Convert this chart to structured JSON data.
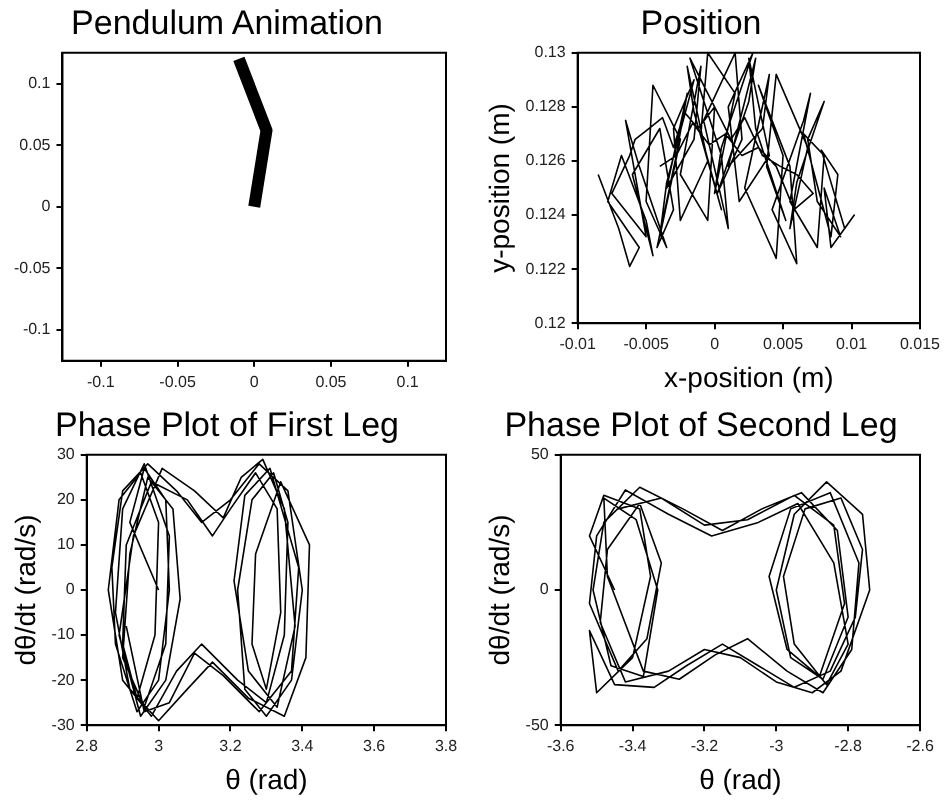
{
  "chart_data": [
    {
      "type": "line",
      "title": "Pendulum Animation",
      "xlim": [
        -0.125,
        0.125
      ],
      "ylim": [
        -0.125,
        0.125
      ],
      "xticks": [
        -0.1,
        -0.05,
        0,
        0.05,
        0.1
      ],
      "yticks": [
        -0.1,
        -0.05,
        0,
        0.05,
        0.1
      ],
      "grid": false,
      "series": [
        {
          "color": "#000000",
          "x": [
            -0.01,
            0.008,
            0
          ],
          "values": [
            0.12,
            0.062,
            0
          ]
        }
      ]
    },
    {
      "type": "line",
      "title": "Position",
      "xlabel": "x-position (m)",
      "ylabel": "y-position (m)",
      "xlim": [
        -0.01,
        0.015
      ],
      "ylim": [
        0.12,
        0.13
      ],
      "xticks": [
        -0.01,
        -0.005,
        0,
        0.005,
        0.01,
        0.015
      ],
      "yticks": [
        0.12,
        0.122,
        0.124,
        0.126,
        0.128,
        0.13
      ],
      "grid": false,
      "series": [
        {
          "color": "#000000",
          "x": [
            -0.0085,
            -0.007,
            -0.0062,
            -0.0055,
            -0.0078,
            -0.0068,
            -0.005,
            -0.0045,
            -0.006,
            -0.004,
            -0.003,
            -0.0042,
            -0.0028,
            -0.002,
            -0.0035,
            -0.0015,
            -0.001,
            -0.0025,
            -0.0005,
            0,
            -0.0018,
            0.0005,
            0.001,
            -0.0008,
            0.0015,
            0.002,
            0.0002,
            0.0025,
            0.003,
            0.001,
            0.0035,
            0.004,
            0.0022,
            0.0045,
            0.005,
            0.0032,
            0.0055,
            0.006,
            0.0042,
            0.0065,
            0.007,
            0.0055,
            0.0075,
            0.008,
            0.0065,
            0.0085,
            0.009,
            0.0078,
            0.0095,
            0.0102,
            0.0085,
            0.008,
            0.0092,
            0.0075,
            0.0068,
            0.008,
            0.006,
            0.0055,
            0.0068,
            0.0045,
            0.0038,
            0.0052,
            0.003,
            0.0025,
            0.004,
            0.0018,
            0.001,
            0.0028,
            0.0005,
            0,
            0.0015,
            -0.0005,
            -0.001,
            0.0005,
            -0.0015,
            -0.002,
            -0.0005,
            -0.0025,
            -0.003,
            -0.0015,
            -0.0035,
            -0.004,
            -0.0025,
            -0.0045,
            -0.005,
            -0.0035,
            -0.0055,
            -0.0065,
            -0.005,
            -0.0075,
            -0.0062,
            -0.0058,
            -0.0048,
            -0.0038,
            -0.003,
            -0.0022,
            -0.0012,
            0,
            0.0012,
            0.0022,
            0.0035,
            0.0048,
            0.006,
            0.0072,
            0.0058,
            0.0045,
            0.0032,
            0.002,
            0.0008,
            -0.0004,
            -0.0016,
            -0.0028,
            -0.004
          ],
          "values": [
            0.1255,
            0.1235,
            0.1221,
            0.1228,
            0.1245,
            0.1262,
            0.1238,
            0.1225,
            0.1255,
            0.1272,
            0.1242,
            0.1228,
            0.1262,
            0.1285,
            0.125,
            0.1268,
            0.1295,
            0.1255,
            0.1238,
            0.128,
            0.1298,
            0.1262,
            0.1235,
            0.1275,
            0.13,
            0.1268,
            0.1248,
            0.1282,
            0.1298,
            0.1258,
            0.1272,
            0.1292,
            0.125,
            0.1224,
            0.1262,
            0.1288,
            0.1258,
            0.1222,
            0.1242,
            0.1275,
            0.1285,
            0.1245,
            0.1228,
            0.1262,
            0.127,
            0.1232,
            0.1255,
            0.1264,
            0.1235,
            0.124,
            0.1228,
            0.125,
            0.1232,
            0.1245,
            0.1268,
            0.1282,
            0.1252,
            0.1235,
            0.1265,
            0.1292,
            0.1258,
            0.1238,
            0.1272,
            0.1298,
            0.1262,
            0.1245,
            0.128,
            0.13,
            0.1265,
            0.1248,
            0.1285,
            0.13,
            0.127,
            0.1242,
            0.1278,
            0.1295,
            0.126,
            0.1238,
            0.1272,
            0.129,
            0.1252,
            0.1232,
            0.1268,
            0.1288,
            0.1245,
            0.1228,
            0.1258,
            0.1275,
            0.1232,
            0.1248,
            0.1262,
            0.1268,
            0.1272,
            0.1276,
            0.1265,
            0.1278,
            0.1272,
            0.128,
            0.1268,
            0.1276,
            0.1262,
            0.1258,
            0.1255,
            0.1248,
            0.1242,
            0.1258,
            0.1265,
            0.1262,
            0.127,
            0.1266,
            0.1274,
            0.1262,
            0.1258
          ]
        }
      ]
    },
    {
      "type": "line",
      "title": "Phase Plot of First Leg",
      "xlabel": "θ (rad)",
      "ylabel": "dθ/dt (rad/s)",
      "xlim": [
        2.8,
        3.8
      ],
      "ylim": [
        -30,
        30
      ],
      "xticks": [
        2.8,
        3,
        3.2,
        3.4,
        3.6,
        3.8
      ],
      "yticks": [
        -30,
        -20,
        -10,
        0,
        10,
        20,
        30
      ],
      "grid": false,
      "series": [
        {
          "color": "#000000",
          "x": [
            3,
            2.92,
            2.96,
            3.02,
            3.03,
            3,
            2.94,
            2.88,
            2.87,
            2.9,
            2.97,
            3.05,
            3.12,
            3.2,
            3.28,
            3.36,
            3.4,
            3.37,
            3.3,
            3.24,
            3.22,
            3.26,
            3.32,
            3.36,
            3.35,
            3.3,
            3.22,
            3.12,
            3.05,
            2.98,
            2.9,
            2.86,
            2.89,
            2.95,
            3,
            2.99,
            2.94,
            2.9,
            2.91,
            2.98,
            3.08,
            3.15,
            3.2,
            3.27,
            3.33,
            3.34,
            3.3,
            3.26,
            3.27,
            3.34,
            3.42,
            3.41,
            3.35,
            3.25,
            3.15,
            3.08,
            3,
            2.92,
            2.88,
            2.9,
            2.96,
            3.03,
            3.02,
            2.96,
            2.9,
            2.92,
            2.97,
            3.04,
            3.06,
            3.02,
            2.95,
            2.89,
            2.93,
            3.01,
            3.1,
            3.18,
            3.23,
            3.29,
            3.35,
            3.38,
            3.33,
            3.25,
            3.21,
            3.24,
            3.31,
            3.39,
            3.37,
            3.28,
            3.18,
            3.1,
            3.03,
            2.96,
            2.91
          ],
          "values": [
            0,
            15,
            27,
            20,
            0,
            -20,
            -27,
            -12,
            5,
            22,
            28,
            22,
            15,
            20,
            28,
            22,
            0,
            -20,
            -28,
            -22,
            0,
            20,
            26,
            15,
            -10,
            -25,
            -20,
            -12,
            -18,
            -28,
            -20,
            0,
            20,
            26,
            15,
            -10,
            -24,
            -12,
            10,
            24,
            20,
            12,
            18,
            26,
            18,
            -5,
            -22,
            -12,
            8,
            24,
            10,
            -15,
            -28,
            -24,
            -16,
            -22,
            -29,
            -22,
            -5,
            18,
            28,
            12,
            -12,
            -26,
            -15,
            8,
            25,
            18,
            -2,
            -20,
            -28,
            -10,
            12,
            27,
            22,
            16,
            25,
            29,
            18,
            -8,
            -26,
            -18,
            2,
            21,
            27,
            5,
            -18,
            -27,
            -19,
            -14,
            -25,
            -27,
            -8
          ]
        }
      ]
    },
    {
      "type": "line",
      "title": "Phase Plot of Second Leg",
      "xlabel": "θ (rad)",
      "ylabel": "dθ/dt (rad/s)",
      "xlim": [
        -3.6,
        -2.6
      ],
      "ylim": [
        -50,
        50
      ],
      "xticks": [
        -3.6,
        -3.4,
        -3.2,
        -3,
        -2.8,
        -2.6
      ],
      "yticks": [
        -50,
        0,
        50
      ],
      "grid": false,
      "series": [
        {
          "color": "#000000",
          "x": [
            -3.45,
            -3.52,
            -3.48,
            -3.38,
            -3.35,
            -3.4,
            -3.5,
            -3.52,
            -3.45,
            -3.34,
            -3.25,
            -3.15,
            -3.05,
            -2.95,
            -2.85,
            -2.78,
            -2.76,
            -2.82,
            -2.92,
            -2.98,
            -2.95,
            -2.86,
            -2.8,
            -2.84,
            -2.94,
            -3.05,
            -3.18,
            -3.3,
            -3.42,
            -3.5,
            -3.52,
            -3.44,
            -3.36,
            -3.32,
            -3.38,
            -3.47,
            -3.49,
            -3.42,
            -3.3,
            -3.2,
            -3.1,
            -3,
            -2.9,
            -2.82,
            -2.74,
            -2.76,
            -2.86,
            -2.95,
            -3,
            -2.96,
            -2.87,
            -2.8,
            -2.83,
            -2.93,
            -3.04,
            -3.15,
            -3.26,
            -3.38,
            -3.48,
            -3.51,
            -3.46,
            -3.37,
            -3.33,
            -3.39,
            -3.48,
            -3.47,
            -3.37,
            -3.27,
            -3.17,
            -3.08,
            -2.97,
            -2.87,
            -2.79,
            -2.77,
            -2.85,
            -2.96,
            -3.02,
            -2.97,
            -2.88,
            -2.81,
            -2.84,
            -2.95,
            -3.08,
            -3.2,
            -3.32,
            -3.44
          ],
          "values": [
            0,
            20,
            35,
            30,
            5,
            -25,
            -38,
            -15,
            -35,
            -36,
            -28,
            -20,
            -28,
            -36,
            -30,
            -10,
            15,
            34,
            30,
            5,
            -20,
            -35,
            -20,
            10,
            32,
            25,
            20,
            28,
            37,
            20,
            -5,
            -30,
            -18,
            10,
            32,
            15,
            -12,
            -34,
            -30,
            -22,
            -25,
            -34,
            -38,
            -30,
            0,
            28,
            40,
            28,
            0,
            -25,
            -33,
            -10,
            22,
            36,
            30,
            22,
            30,
            38,
            25,
            0,
            -28,
            -32,
            0,
            26,
            34,
            5,
            -30,
            -33,
            -24,
            -18,
            -30,
            -38,
            -22,
            10,
            36,
            30,
            5,
            -22,
            -32,
            -5,
            24,
            35,
            26,
            24,
            34,
            30
          ]
        }
      ]
    }
  ]
}
